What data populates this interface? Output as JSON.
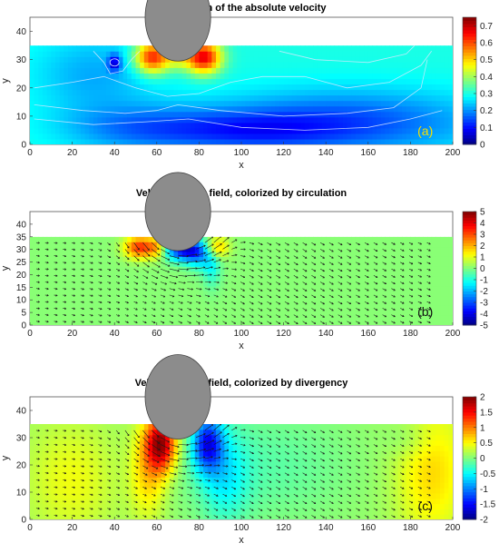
{
  "colors": {
    "jet": [
      "#00007f",
      "#0000ff",
      "#007fff",
      "#00ffff",
      "#7fff7f",
      "#ffff00",
      "#ff7f00",
      "#ff0000",
      "#7f0000"
    ],
    "tool": "#8c8c8c",
    "contour": "#d9e8ff",
    "vector": "#1a1a1a",
    "panel_a_label": "#f5e000",
    "panel_label": "#111111"
  },
  "chart_data": [
    {
      "type": "heatmap",
      "title": "Distribution of the absolute velocity",
      "panel_label": "(a)",
      "xlabel": "x",
      "ylabel": "y",
      "xlim": [
        0,
        200
      ],
      "ylim": [
        0,
        45
      ],
      "x_ticks": [
        0,
        20,
        40,
        60,
        80,
        100,
        120,
        140,
        160,
        180,
        200
      ],
      "y_ticks": [
        0,
        10,
        20,
        30,
        40
      ],
      "domain_top": 35,
      "tool": {
        "cx": 70,
        "cy": 45,
        "r": 15.5
      },
      "colorbar": {
        "min": 0,
        "max": 0.75,
        "ticks": [
          0,
          0.1,
          0.2,
          0.3,
          0.4,
          0.5,
          0.6,
          0.7
        ]
      },
      "background_value": 0.3,
      "blobs": [
        {
          "x": 58,
          "y": 31,
          "sx": 6,
          "sy": 4,
          "v": 0.35
        },
        {
          "x": 82,
          "y": 31,
          "sx": 6,
          "sy": 4,
          "v": 0.38
        },
        {
          "x": 70,
          "y": 31,
          "sx": 4,
          "sy": 3,
          "v": 0.1
        },
        {
          "x": 30,
          "y": 25,
          "sx": 20,
          "sy": 10,
          "v": -0.08
        },
        {
          "x": 150,
          "y": 8,
          "sx": 45,
          "sy": 8,
          "v": -0.15
        },
        {
          "x": 50,
          "y": 6,
          "sx": 25,
          "sy": 6,
          "v": -0.1
        },
        {
          "x": 100,
          "y": 5,
          "sx": 30,
          "sy": 5,
          "v": -0.12
        },
        {
          "x": 40,
          "y": 29,
          "sx": 2,
          "sy": 2,
          "v": -0.2
        }
      ],
      "grid": false
    },
    {
      "type": "heatmap",
      "title": "Velocity vector field, colorized by circulation",
      "panel_label": "(b)",
      "xlabel": "x",
      "ylabel": "y",
      "xlim": [
        0,
        200
      ],
      "ylim": [
        0,
        45
      ],
      "x_ticks": [
        0,
        20,
        40,
        60,
        80,
        100,
        120,
        140,
        160,
        180,
        200
      ],
      "y_ticks": [
        0,
        5,
        10,
        15,
        20,
        25,
        30,
        35,
        40
      ],
      "domain_top": 35,
      "tool": {
        "cx": 70,
        "cy": 45,
        "r": 15.5
      },
      "colorbar": {
        "min": -5,
        "max": 5,
        "ticks": [
          -5,
          -4,
          -3,
          -2,
          -1,
          0,
          1,
          2,
          3,
          4,
          5
        ]
      },
      "background_value": 0.1,
      "blobs": [
        {
          "x": 52,
          "y": 31,
          "sx": 5,
          "sy": 3,
          "v": 3.2
        },
        {
          "x": 60,
          "y": 31,
          "sx": 3,
          "sy": 3,
          "v": 1.5
        },
        {
          "x": 73,
          "y": 30,
          "sx": 6,
          "sy": 3,
          "v": -4.0
        },
        {
          "x": 80,
          "y": 28,
          "sx": 4,
          "sy": 4,
          "v": -1.6
        },
        {
          "x": 88,
          "y": 31,
          "sx": 4,
          "sy": 3,
          "v": 2.0
        },
        {
          "x": 86,
          "y": 24,
          "sx": 3,
          "sy": 6,
          "v": -1.2
        }
      ],
      "vectors": true,
      "grid": false
    },
    {
      "type": "heatmap",
      "title": "Velocity vector field, colorized by divergency",
      "panel_label": "(c)",
      "xlabel": "x",
      "ylabel": "y",
      "xlim": [
        0,
        200
      ],
      "ylim": [
        0,
        45
      ],
      "x_ticks": [
        0,
        20,
        40,
        60,
        80,
        100,
        120,
        140,
        160,
        180,
        200
      ],
      "y_ticks": [
        0,
        10,
        20,
        30,
        40
      ],
      "domain_top": 35,
      "tool": {
        "cx": 70,
        "cy": 45,
        "r": 15.5
      },
      "colorbar": {
        "min": -2,
        "max": 2,
        "ticks": [
          -2,
          -1.5,
          -1,
          -0.5,
          0,
          0.5,
          1,
          1.5,
          2
        ]
      },
      "background_value": 0.1,
      "blobs": [
        {
          "x": 62,
          "y": 28,
          "sx": 5,
          "sy": 7,
          "v": 1.7
        },
        {
          "x": 56,
          "y": 18,
          "sx": 6,
          "sy": 12,
          "v": 0.6
        },
        {
          "x": 84,
          "y": 28,
          "sx": 5,
          "sy": 7,
          "v": -1.4
        },
        {
          "x": 92,
          "y": 16,
          "sx": 8,
          "sy": 12,
          "v": -0.5
        },
        {
          "x": 110,
          "y": 20,
          "sx": 30,
          "sy": 15,
          "v": -0.25
        },
        {
          "x": 20,
          "y": 15,
          "sx": 15,
          "sy": 15,
          "v": 0.35
        },
        {
          "x": 190,
          "y": 18,
          "sx": 12,
          "sy": 18,
          "v": 0.55
        },
        {
          "x": 180,
          "y": 30,
          "sx": 8,
          "sy": 5,
          "v": -0.2
        }
      ],
      "vectors": true,
      "grid": false
    }
  ]
}
